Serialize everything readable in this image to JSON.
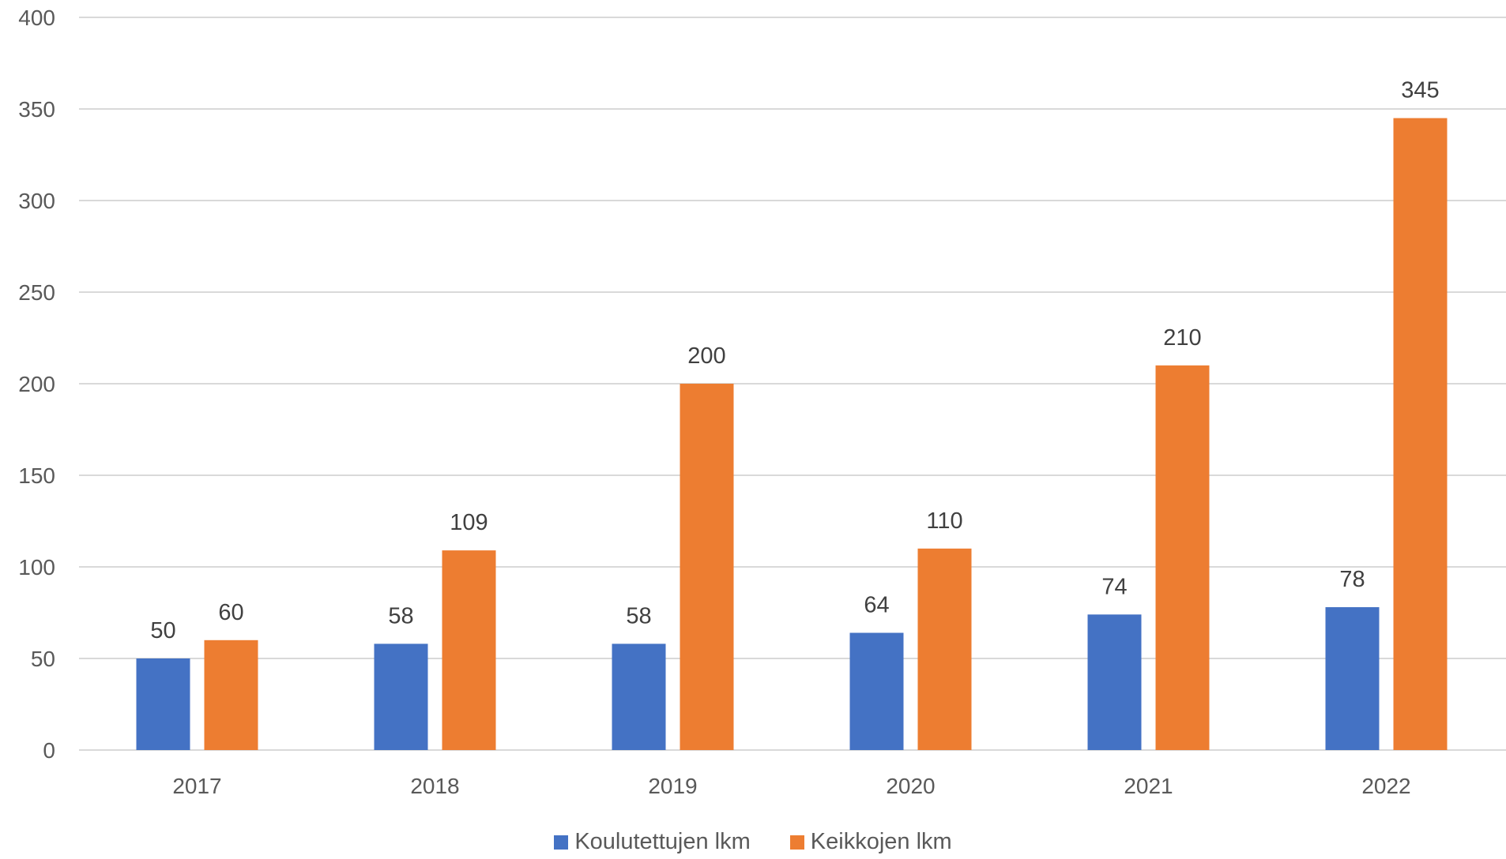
{
  "chart_data": {
    "type": "bar",
    "title": "",
    "xlabel": "",
    "ylabel": "",
    "categories": [
      "2017",
      "2018",
      "2019",
      "2020",
      "2021",
      "2022"
    ],
    "series": [
      {
        "name": "Koulutettujen lkm",
        "color": "#4472C4",
        "values": [
          50,
          58,
          58,
          64,
          74,
          78
        ]
      },
      {
        "name": "Keikkojen lkm",
        "color": "#ED7D31",
        "values": [
          60,
          109,
          200,
          110,
          210,
          345
        ]
      }
    ],
    "ylim": [
      0,
      400
    ],
    "yticks": [
      0,
      50,
      100,
      150,
      200,
      250,
      300,
      350,
      400
    ],
    "grid": true,
    "legend_position": "bottom"
  }
}
